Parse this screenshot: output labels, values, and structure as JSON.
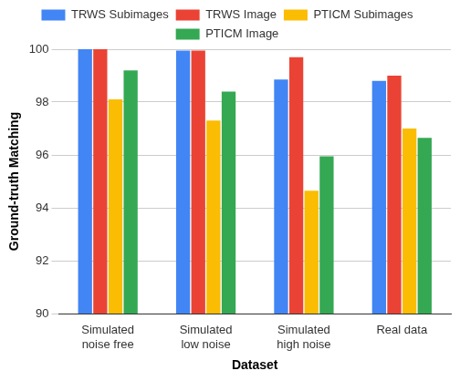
{
  "chart_data": {
    "type": "bar",
    "x_label": "Dataset",
    "y_label": "Ground-truth Matching",
    "categories": [
      "Simulated\nnoise free",
      "Simulated\nlow noise",
      "Simulated\nhigh noise",
      "Real data"
    ],
    "series": [
      {
        "name": "TRWS Subimages",
        "color": "#4285f4",
        "values": [
          100,
          99.95,
          98.85,
          98.8
        ]
      },
      {
        "name": "TRWS Image",
        "color": "#ea4335",
        "values": [
          100,
          99.95,
          99.7,
          99.0
        ]
      },
      {
        "name": "PTICM Subimages",
        "color": "#fbbc04",
        "values": [
          98.1,
          97.3,
          94.65,
          97.0
        ]
      },
      {
        "name": "PTICM Image",
        "color": "#34a853",
        "values": [
          99.2,
          98.4,
          95.95,
          96.65
        ]
      }
    ],
    "ylim": [
      90,
      100
    ],
    "yticks": [
      90,
      92,
      94,
      96,
      98,
      100
    ],
    "grid": true,
    "legend": "top"
  }
}
